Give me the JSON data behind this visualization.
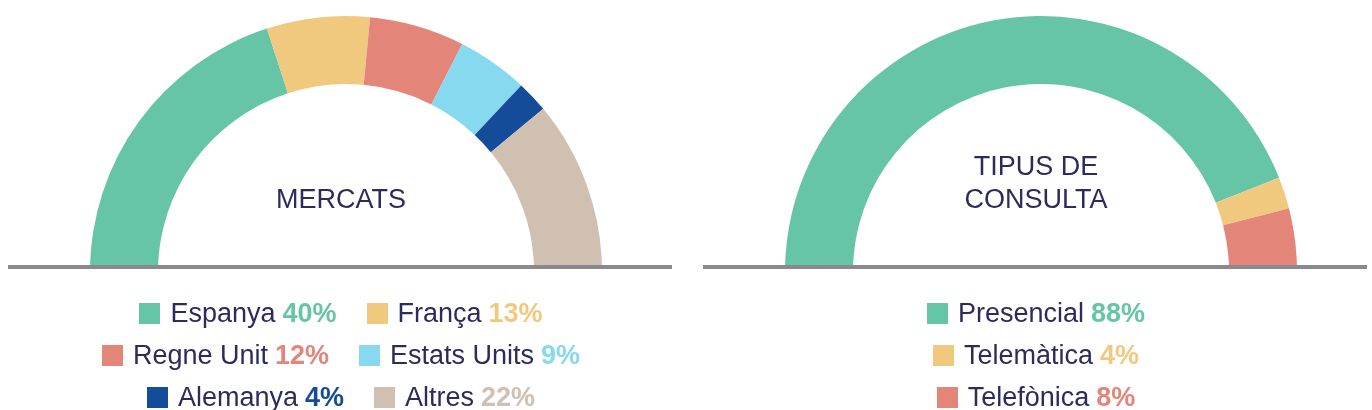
{
  "chart_data": [
    {
      "type": "donut",
      "title": "MERCATS",
      "categories": [
        "Espanya",
        "França",
        "Regne Unit",
        "Estats Units",
        "Alemanya",
        "Altres"
      ],
      "values": [
        40,
        13,
        12,
        9,
        4,
        22
      ],
      "value_labels": [
        "40%",
        "13%",
        "12%",
        "9%",
        "4%",
        "22%"
      ],
      "colors": [
        "#66c5a6",
        "#f0c97f",
        "#e4857a",
        "#87d9ef",
        "#154c9a",
        "#cfc0b2"
      ],
      "legend": "bottom"
    },
    {
      "type": "donut",
      "title": "TIPUS DE CONSULTA",
      "categories": [
        "Presencial",
        "Telemàtica",
        "Telefònica"
      ],
      "values": [
        88,
        4,
        8
      ],
      "value_labels": [
        "88%",
        "4%",
        "8%"
      ],
      "colors": [
        "#66c5a6",
        "#f0c97f",
        "#e4857a"
      ],
      "legend": "bottom"
    }
  ]
}
